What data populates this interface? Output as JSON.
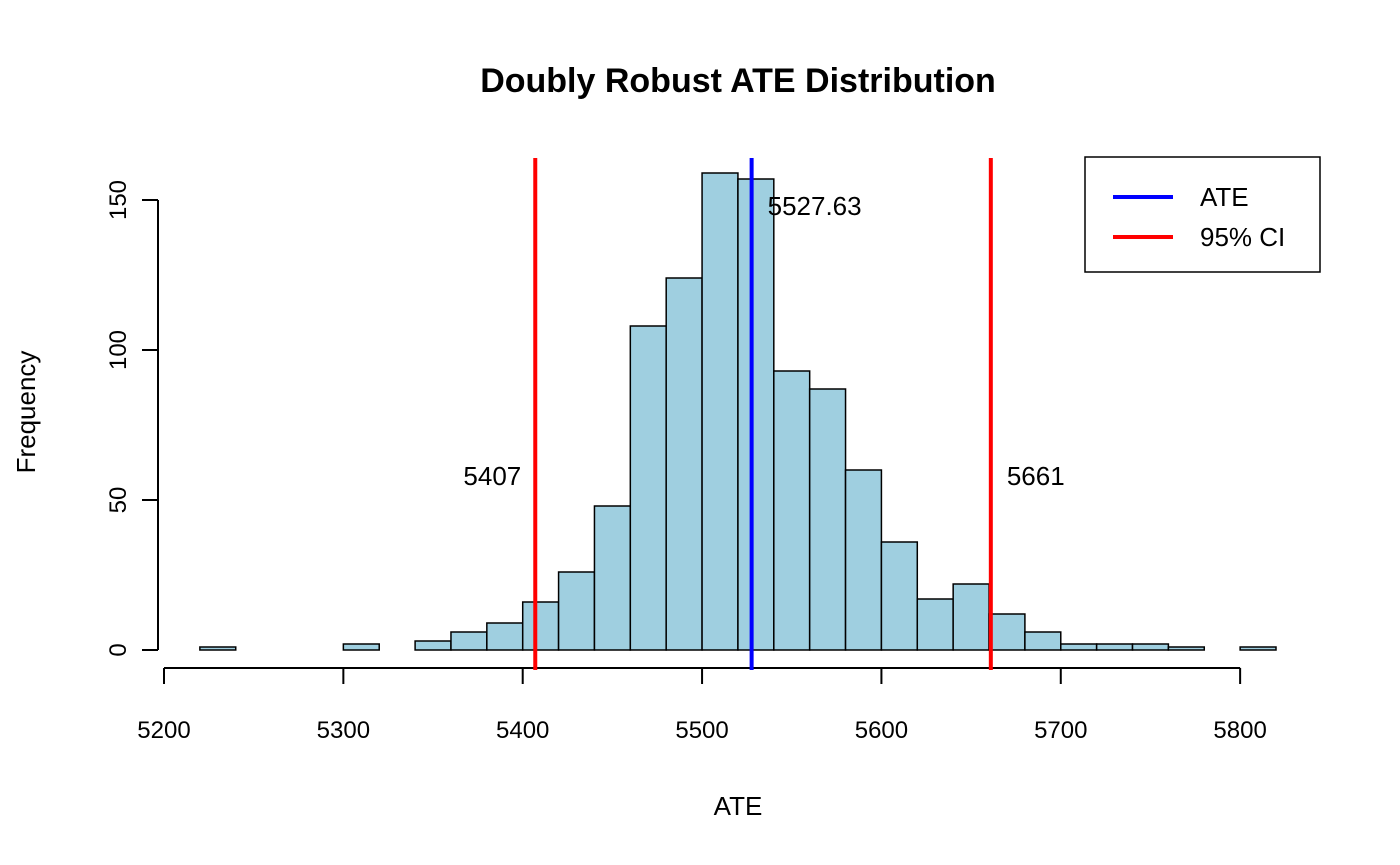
{
  "chart_data": {
    "type": "histogram",
    "title": "Doubly Robust ATE Distribution",
    "xlabel": "ATE",
    "ylabel": "Frequency",
    "xlim": [
      5200,
      5820
    ],
    "ylim": [
      0,
      160
    ],
    "x_ticks": [
      5200,
      5300,
      5400,
      5500,
      5600,
      5700,
      5800
    ],
    "y_ticks": [
      0,
      50,
      100,
      150
    ],
    "bin_width": 20,
    "bins": [
      {
        "start": 5220,
        "end": 5240,
        "count": 1
      },
      {
        "start": 5240,
        "end": 5260,
        "count": 0
      },
      {
        "start": 5260,
        "end": 5280,
        "count": 0
      },
      {
        "start": 5280,
        "end": 5300,
        "count": 0
      },
      {
        "start": 5300,
        "end": 5320,
        "count": 2
      },
      {
        "start": 5320,
        "end": 5340,
        "count": 0
      },
      {
        "start": 5340,
        "end": 5360,
        "count": 3
      },
      {
        "start": 5360,
        "end": 5380,
        "count": 6
      },
      {
        "start": 5380,
        "end": 5400,
        "count": 9
      },
      {
        "start": 5400,
        "end": 5420,
        "count": 16
      },
      {
        "start": 5420,
        "end": 5440,
        "count": 26
      },
      {
        "start": 5440,
        "end": 5460,
        "count": 48
      },
      {
        "start": 5460,
        "end": 5480,
        "count": 108
      },
      {
        "start": 5480,
        "end": 5500,
        "count": 124
      },
      {
        "start": 5500,
        "end": 5520,
        "count": 159
      },
      {
        "start": 5520,
        "end": 5540,
        "count": 157
      },
      {
        "start": 5540,
        "end": 5560,
        "count": 93
      },
      {
        "start": 5560,
        "end": 5580,
        "count": 87
      },
      {
        "start": 5580,
        "end": 5600,
        "count": 60
      },
      {
        "start": 5600,
        "end": 5620,
        "count": 36
      },
      {
        "start": 5620,
        "end": 5640,
        "count": 17
      },
      {
        "start": 5640,
        "end": 5660,
        "count": 22
      },
      {
        "start": 5660,
        "end": 5680,
        "count": 12
      },
      {
        "start": 5680,
        "end": 5700,
        "count": 6
      },
      {
        "start": 5700,
        "end": 5720,
        "count": 2
      },
      {
        "start": 5720,
        "end": 5740,
        "count": 2
      },
      {
        "start": 5740,
        "end": 5760,
        "count": 2
      },
      {
        "start": 5760,
        "end": 5780,
        "count": 1
      },
      {
        "start": 5780,
        "end": 5800,
        "count": 0
      },
      {
        "start": 5800,
        "end": 5820,
        "count": 1
      }
    ],
    "bar_fill": "#9fcfe0",
    "bar_stroke": "#000000",
    "vlines": [
      {
        "name": "ATE",
        "x": 5527.63,
        "label": "5527.63",
        "label_y": 148,
        "label_side": "right",
        "color": "#0000ff"
      },
      {
        "name": "95% CI",
        "x": 5407,
        "label": "5407",
        "label_y": 58,
        "label_side": "left",
        "color": "#ff0000"
      },
      {
        "name": "95% CI",
        "x": 5661,
        "label": "5661",
        "label_y": 58,
        "label_side": "right",
        "color": "#ff0000"
      }
    ],
    "legend": {
      "position": "top-right",
      "entries": [
        {
          "label": "ATE",
          "color": "#0000ff"
        },
        {
          "label": "95% CI",
          "color": "#ff0000"
        }
      ]
    },
    "grid": false
  }
}
